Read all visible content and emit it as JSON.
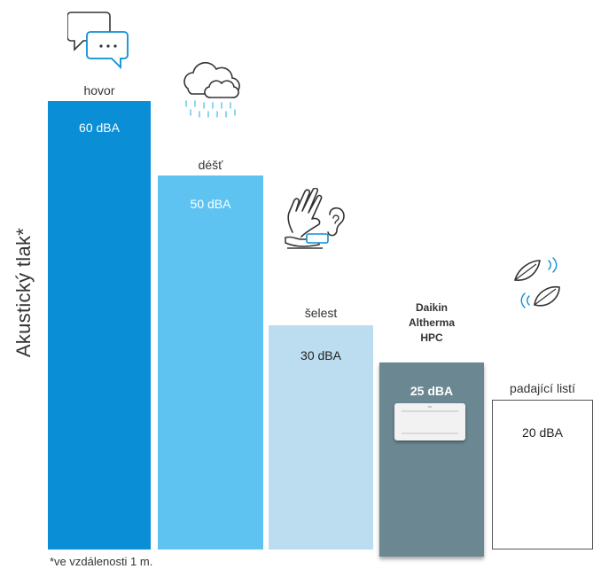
{
  "chart_data": {
    "type": "bar",
    "ylabel": "Akustický tlak*",
    "xlabel": "",
    "footnote": "*ve vzdálenosti 1 m.",
    "ylim": [
      0,
      70
    ],
    "categories": [
      "hovor",
      "déšť",
      "šelest",
      "Daikin Altherma HPC",
      "padající listí"
    ],
    "values": [
      60,
      50,
      30,
      25,
      20
    ],
    "value_labels": [
      "60 dBA",
      "50 dBA",
      "30 dBA",
      "25 dBA",
      "20 dBA"
    ],
    "bar_colors": [
      "#0a8fd6",
      "#5ec3f0",
      "#bcdcef",
      "#6b8791",
      "#ffffff"
    ],
    "icons": [
      "chat-bubbles-icon",
      "rain-cloud-icon",
      "hand-ear-icon",
      "indoor-unit-icon",
      "falling-leaves-icon"
    ]
  }
}
